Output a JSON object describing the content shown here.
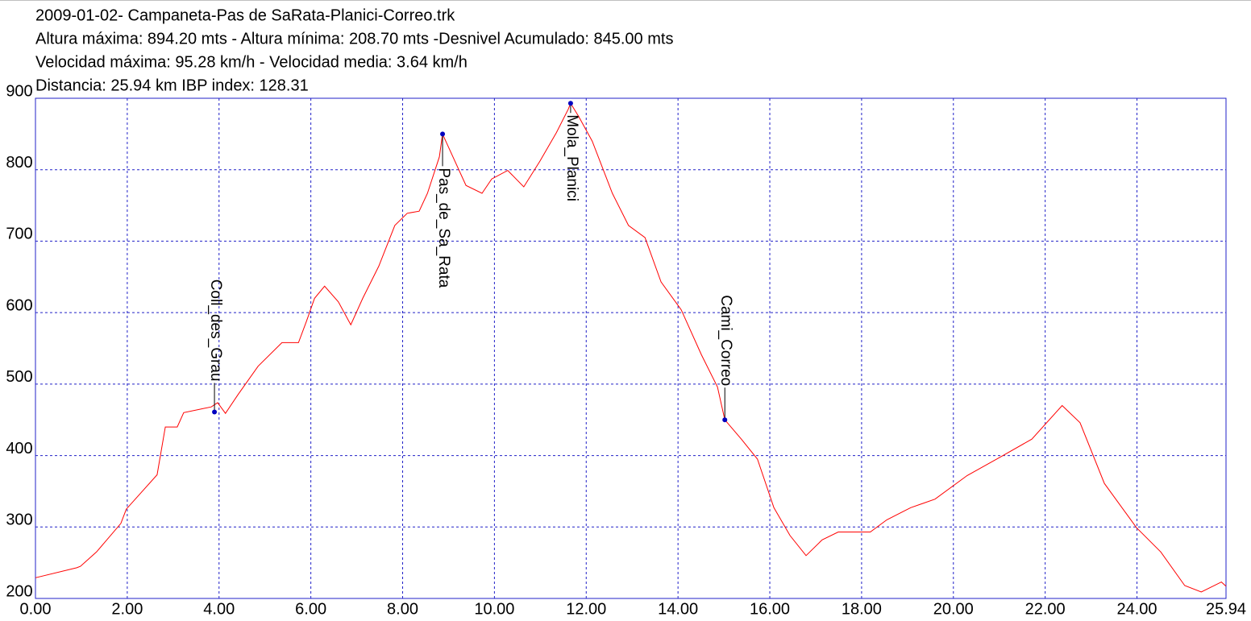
{
  "chart_data": {
    "type": "line",
    "title": "2009-01-02- Campaneta-Pas de SaRata-Planici-Correo.trk",
    "subtitle_lines": [
      "Altura máxima: 894.20 mts - Altura mínima: 208.70 mts -Desnivel Acumulado: 845.00 mts",
      "Velocidad máxima: 95.28 km/h - Velocidad media: 3.64 km/h",
      "Distancia: 25.94 km IBP index: 128.31"
    ],
    "x": [
      0,
      0.9,
      0.98,
      1.33,
      1.86,
      1.98,
      2.3,
      2.65,
      2.83,
      3.09,
      3.23,
      3.83,
      3.97,
      4.14,
      4.41,
      4.85,
      5.37,
      5.73,
      5.9,
      6.08,
      6.3,
      6.6,
      6.87,
      7.13,
      7.48,
      7.83,
      8.1,
      8.36,
      8.54,
      8.8,
      8.87,
      9.06,
      9.38,
      9.73,
      9.94,
      10.29,
      10.64,
      10.99,
      11.35,
      11.61,
      11.66,
      11.84,
      12.13,
      12.57,
      12.92,
      13.28,
      13.63,
      14.07,
      14.51,
      14.86,
      15.02,
      15.38,
      15.73,
      16.09,
      16.44,
      16.79,
      17.14,
      17.49,
      18.19,
      18.55,
      19.07,
      19.6,
      20.3,
      21.0,
      21.71,
      22.37,
      22.76,
      23.29,
      23.99,
      24.52,
      25.04,
      25.4,
      25.84,
      25.94
    ],
    "series": [
      {
        "name": "Altura",
        "color": "#ff0000",
        "values": [
          229,
          243,
          245,
          265,
          305,
          325,
          348,
          373,
          440,
          440,
          460,
          468,
          474,
          459,
          485,
          525,
          558,
          558,
          587,
          620,
          637,
          615,
          583,
          620,
          665,
          722,
          739,
          742,
          767,
          818,
          850,
          823,
          778,
          767,
          787,
          799,
          776,
          812,
          852,
          885,
          893,
          874,
          840,
          767,
          722,
          705,
          643,
          604,
          541,
          496,
          450,
          423,
          395,
          327,
          288,
          260,
          282,
          293,
          293,
          310,
          327,
          339,
          372,
          397,
          423,
          470,
          446,
          361,
          299,
          265,
          218,
          209,
          223,
          217
        ]
      }
    ],
    "annotations": [
      {
        "text": "Coll_des_Grau",
        "x": 3.9,
        "y": 461
      },
      {
        "text": "Pas_de_Sa_Rata",
        "x": 8.87,
        "y": 850
      },
      {
        "text": "Mola_Planici",
        "x": 11.66,
        "y": 893
      },
      {
        "text": "Cami_Correo",
        "x": 15.02,
        "y": 450
      }
    ],
    "annotation_color": "#0000c0",
    "frame_color": "#2020c8",
    "grid": true,
    "xlim": [
      0,
      25.94
    ],
    "xticks": [
      {
        "value": 0,
        "label": "0.00"
      },
      {
        "value": 2,
        "label": "2.00"
      },
      {
        "value": 4,
        "label": "4.00"
      },
      {
        "value": 6,
        "label": "6.00"
      },
      {
        "value": 8,
        "label": "8.00"
      },
      {
        "value": 10,
        "label": "10.00"
      },
      {
        "value": 12,
        "label": "12.00"
      },
      {
        "value": 14,
        "label": "14.00"
      },
      {
        "value": 16,
        "label": "16.00"
      },
      {
        "value": 18,
        "label": "18.00"
      },
      {
        "value": 20,
        "label": "20.00"
      },
      {
        "value": 22,
        "label": "22.00"
      },
      {
        "value": 24,
        "label": "24.00"
      },
      {
        "value": 25.94,
        "label": "25.94"
      }
    ],
    "ylim": [
      200,
      900
    ],
    "yticks": [
      200,
      300,
      400,
      500,
      600,
      700,
      800,
      900
    ]
  }
}
